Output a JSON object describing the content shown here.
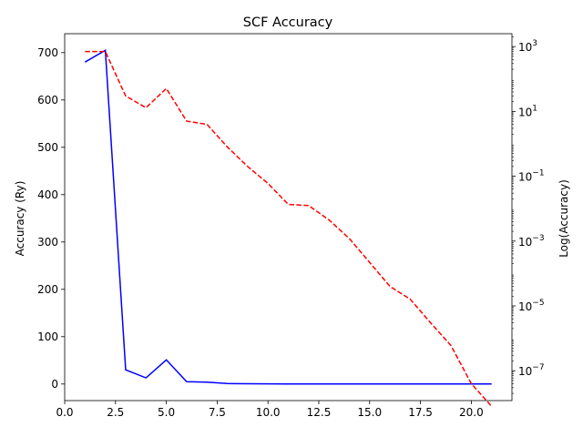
{
  "chart_data": {
    "type": "line",
    "title": "SCF Accuracy",
    "x": [
      1,
      2,
      3,
      4,
      5,
      6,
      7,
      8,
      9,
      10,
      11,
      12,
      13,
      14,
      15,
      16,
      17,
      18,
      19,
      20,
      21
    ],
    "xlim": [
      0,
      22
    ],
    "xticks": [
      "0.0",
      "2.5",
      "5.0",
      "7.5",
      "10.0",
      "12.5",
      "15.0",
      "17.5",
      "20.0"
    ],
    "yleft": {
      "label": "Accuracy (Ry)",
      "ylim": [
        -35,
        740
      ],
      "ticks": [
        "0",
        "100",
        "200",
        "300",
        "400",
        "500",
        "600",
        "700"
      ]
    },
    "yright": {
      "label": "Log(Accuracy)",
      "scale": "log",
      "ylim": [
        1.2e-08,
        2500
      ],
      "ticks": [
        "10^3",
        "10^1",
        "10^-1",
        "10^-3",
        "10^-5",
        "10^-7"
      ]
    },
    "series": [
      {
        "axis": "left",
        "style": "solid",
        "color": "#0000ff",
        "values": [
          680,
          705,
          30,
          13,
          51,
          5,
          4,
          1,
          0.5,
          0.3,
          0.1,
          0.1,
          0.05,
          0.02,
          0.005,
          0.0005,
          0.0002,
          2e-05,
          5e-06,
          3e-07,
          5e-08
        ]
      },
      {
        "axis": "right",
        "style": "dashed",
        "color": "#ff0000",
        "values": [
          705,
          705,
          30,
          13,
          51,
          5,
          4,
          0.8,
          0.2,
          0.06,
          0.0135,
          0.0125,
          0.0045,
          0.0012,
          0.00022,
          4e-05,
          1.6e-05,
          3e-06,
          6e-07,
          4e-08,
          8e-09
        ]
      }
    ]
  }
}
